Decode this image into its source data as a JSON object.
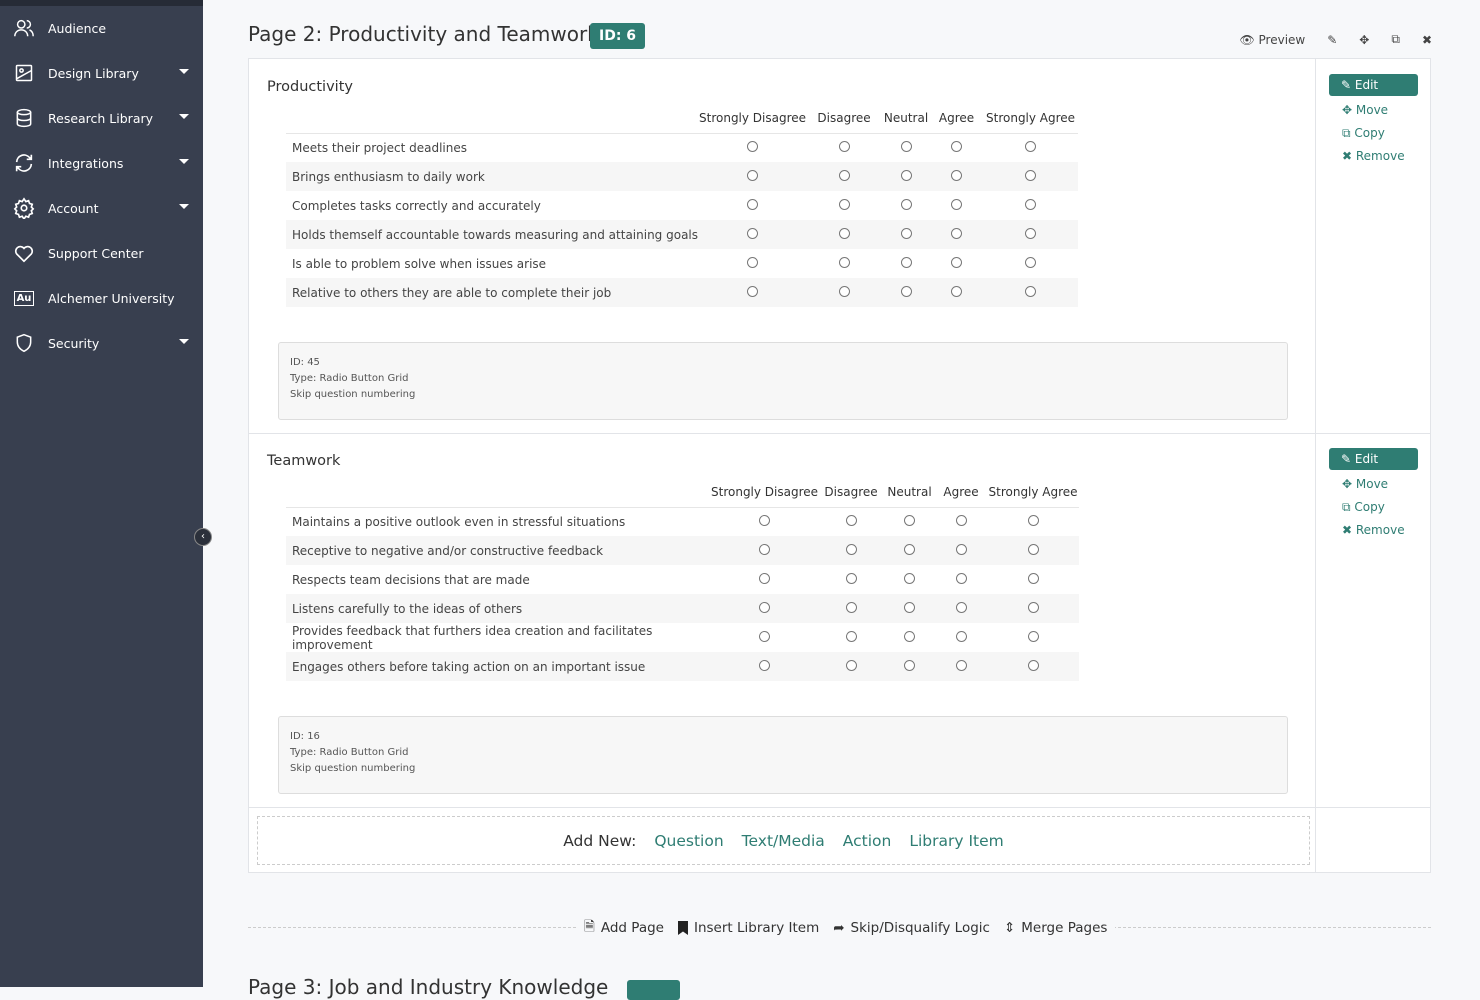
{
  "sidebar": {
    "items": [
      {
        "label": "Audience",
        "icon": "users-icon",
        "caret": false
      },
      {
        "label": "Design Library",
        "icon": "image-icon",
        "caret": true
      },
      {
        "label": "Research Library",
        "icon": "database-icon",
        "caret": true
      },
      {
        "label": "Integrations",
        "icon": "sync-icon",
        "caret": true
      },
      {
        "label": "Account",
        "icon": "gear-icon",
        "caret": true
      },
      {
        "label": "Support Center",
        "icon": "heart-icon",
        "caret": false
      },
      {
        "label": "Alchemer University",
        "icon": "au-logo-icon",
        "icon_text": "Au",
        "caret": false
      },
      {
        "label": "Security",
        "icon": "shield-icon",
        "caret": true
      }
    ]
  },
  "page": {
    "title": "Page 2: Productivity and Teamwork",
    "id_badge": "ID: 6"
  },
  "toolbar": {
    "preview": "Preview"
  },
  "actions": {
    "edit": "Edit",
    "move": "Move",
    "copy": "Copy",
    "remove": "Remove"
  },
  "questions": [
    {
      "title": "Productivity",
      "columns": [
        "Strongly Disagree",
        "Disagree",
        "Neutral",
        "Agree",
        "Strongly Agree"
      ],
      "rows": [
        "Meets their project deadlines",
        "Brings enthusiasm to daily work",
        "Completes tasks correctly and accurately",
        "Holds themself accountable towards measuring and attaining goals",
        "Is able to problem solve when issues arise",
        "Relative to others they are able to complete their job"
      ],
      "info": {
        "id": "ID: 45",
        "type": "Type: Radio Button Grid",
        "numbering": "Skip question numbering"
      }
    },
    {
      "title": "Teamwork",
      "columns": [
        "Strongly Disagree",
        "Disagree",
        "Neutral",
        "Agree",
        "Strongly Agree"
      ],
      "rows": [
        "Maintains a positive outlook even in stressful situations",
        "Receptive to negative and/or constructive feedback",
        "Respects team decisions that are made",
        "Listens carefully to the ideas of others",
        "Provides feedback that furthers idea creation and facilitates improvement",
        "Engages others before taking action on an important issue"
      ],
      "info": {
        "id": "ID: 16",
        "type": "Type: Radio Button Grid",
        "numbering": "Skip question numbering"
      }
    }
  ],
  "add_new": {
    "label": "Add New:",
    "question": "Question",
    "text_media": "Text/Media",
    "action": "Action",
    "library_item": "Library Item"
  },
  "page_actions": {
    "add_page": "Add Page",
    "insert_library_item": "Insert Library Item",
    "skip_logic": "Skip/Disqualify Logic",
    "merge_pages": "Merge Pages"
  },
  "next_page": {
    "title": "Page 3: Job and Industry Knowledge"
  },
  "colors": {
    "accent": "#2f7d73",
    "sidebar": "#383f4f"
  }
}
